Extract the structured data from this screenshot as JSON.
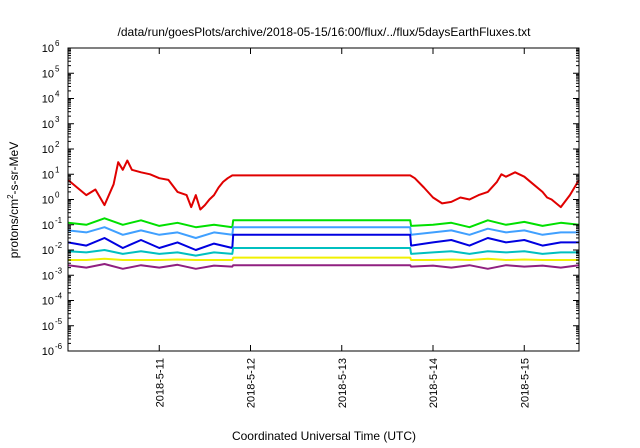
{
  "chart_data": {
    "type": "line",
    "title": "/data/run/goesPlots/archive/2018-05-15/16:00/flux/../flux/5daysEarthFluxes.txt",
    "xlabel": "Coordinated Universal Time (UTC)",
    "ylabel": {
      "base": "protons/cm",
      "sup": "2",
      "rest": "-s-sr-MeV"
    },
    "yscale": "log",
    "ylim": [
      1e-06,
      1000000.0
    ],
    "y_ticks": [
      {
        "value": -6,
        "base": "10",
        "exp": "-6"
      },
      {
        "value": -5,
        "base": "10",
        "exp": "-5"
      },
      {
        "value": -4,
        "base": "10",
        "exp": "-4"
      },
      {
        "value": -3,
        "base": "10",
        "exp": "-3"
      },
      {
        "value": -2,
        "base": "10",
        "exp": "-2"
      },
      {
        "value": -1,
        "base": "10",
        "exp": "-1"
      },
      {
        "value": 0,
        "base": "10",
        "exp": "0"
      },
      {
        "value": 1,
        "base": "10",
        "exp": "1"
      },
      {
        "value": 2,
        "base": "10",
        "exp": "2"
      },
      {
        "value": 3,
        "base": "10",
        "exp": "3"
      },
      {
        "value": 4,
        "base": "10",
        "exp": "4"
      },
      {
        "value": 5,
        "base": "10",
        "exp": "5"
      },
      {
        "value": 6,
        "base": "10",
        "exp": "6"
      }
    ],
    "x_ticks": [
      "2018-5-11",
      "2018-5-12",
      "2018-5-13",
      "2018-5-14",
      "2018-5-15"
    ],
    "xlim": [
      0,
      5.6
    ],
    "x_tick_positions": [
      1,
      2,
      3,
      4,
      5
    ],
    "grid": false,
    "legend": "none",
    "series": [
      {
        "color": "#e00000",
        "x": [
          0.0,
          0.1,
          0.2,
          0.3,
          0.4,
          0.5,
          0.55,
          0.6,
          0.65,
          0.7,
          0.8,
          0.9,
          1.0,
          1.1,
          1.2,
          1.3,
          1.35,
          1.4,
          1.45,
          1.5,
          1.55,
          1.6,
          1.65,
          1.7,
          1.75,
          1.8,
          3.75,
          3.8,
          3.9,
          4.0,
          4.1,
          4.2,
          4.3,
          4.4,
          4.5,
          4.6,
          4.7,
          4.75,
          4.8,
          4.9,
          5.0,
          5.1,
          5.2,
          5.25,
          5.3,
          5.4,
          5.5,
          5.6
        ],
        "values": [
          6,
          3,
          1.5,
          2.5,
          0.6,
          4,
          30,
          15,
          35,
          15,
          12,
          10,
          7,
          6,
          2,
          1.5,
          0.5,
          1.5,
          0.4,
          0.6,
          1,
          1.5,
          3,
          5,
          7,
          9,
          9,
          7,
          3,
          1.2,
          0.7,
          0.8,
          1.2,
          1,
          1.5,
          2,
          5,
          10,
          8,
          12,
          8,
          4,
          2,
          1.2,
          1,
          0.5,
          1.5,
          6
        ]
      },
      {
        "color": "#00e000",
        "x": [
          0.0,
          0.2,
          0.4,
          0.6,
          0.8,
          1.0,
          1.2,
          1.4,
          1.6,
          1.8,
          1.81,
          3.75,
          3.76,
          4.0,
          4.2,
          4.4,
          4.6,
          4.8,
          5.0,
          5.2,
          5.4,
          5.6
        ],
        "values": [
          0.12,
          0.1,
          0.18,
          0.1,
          0.15,
          0.09,
          0.12,
          0.08,
          0.1,
          0.08,
          0.15,
          0.15,
          0.09,
          0.1,
          0.12,
          0.08,
          0.15,
          0.1,
          0.13,
          0.09,
          0.12,
          0.1
        ]
      },
      {
        "color": "#40a0ff",
        "x": [
          0.0,
          0.2,
          0.4,
          0.6,
          0.8,
          1.0,
          1.2,
          1.4,
          1.6,
          1.8,
          1.81,
          3.75,
          3.76,
          4.0,
          4.2,
          4.4,
          4.6,
          4.8,
          5.0,
          5.2,
          5.4,
          5.6
        ],
        "values": [
          0.06,
          0.05,
          0.08,
          0.04,
          0.06,
          0.04,
          0.05,
          0.03,
          0.05,
          0.04,
          0.08,
          0.08,
          0.04,
          0.05,
          0.06,
          0.04,
          0.07,
          0.05,
          0.06,
          0.04,
          0.05,
          0.05
        ]
      },
      {
        "color": "#0000e0",
        "x": [
          0.0,
          0.2,
          0.4,
          0.6,
          0.8,
          1.0,
          1.2,
          1.4,
          1.6,
          1.8,
          1.81,
          3.75,
          3.76,
          4.0,
          4.2,
          4.4,
          4.6,
          4.8,
          5.0,
          5.2,
          5.4,
          5.6
        ],
        "values": [
          0.02,
          0.015,
          0.03,
          0.012,
          0.025,
          0.012,
          0.02,
          0.01,
          0.018,
          0.012,
          0.04,
          0.04,
          0.015,
          0.02,
          0.025,
          0.015,
          0.03,
          0.02,
          0.025,
          0.015,
          0.02,
          0.02
        ]
      },
      {
        "color": "#00c0c0",
        "x": [
          0.0,
          0.2,
          0.4,
          0.6,
          0.8,
          1.0,
          1.2,
          1.4,
          1.6,
          1.8,
          1.81,
          3.75,
          3.76,
          4.0,
          4.2,
          4.4,
          4.6,
          4.8,
          5.0,
          5.2,
          5.4,
          5.6
        ],
        "values": [
          0.009,
          0.008,
          0.01,
          0.007,
          0.009,
          0.007,
          0.008,
          0.006,
          0.008,
          0.007,
          0.012,
          0.012,
          0.007,
          0.008,
          0.009,
          0.007,
          0.009,
          0.008,
          0.009,
          0.007,
          0.008,
          0.008
        ]
      },
      {
        "color": "#f0f000",
        "x": [
          0.0,
          0.2,
          0.4,
          0.6,
          0.8,
          1.0,
          1.2,
          1.4,
          1.6,
          1.8,
          1.81,
          3.75,
          3.76,
          4.0,
          4.2,
          4.4,
          4.6,
          4.8,
          5.0,
          5.2,
          5.4,
          5.6
        ],
        "values": [
          0.004,
          0.004,
          0.0045,
          0.004,
          0.004,
          0.004,
          0.0042,
          0.004,
          0.004,
          0.004,
          0.005,
          0.005,
          0.004,
          0.004,
          0.0042,
          0.004,
          0.0045,
          0.004,
          0.0042,
          0.004,
          0.004,
          0.004
        ]
      },
      {
        "color": "#902080",
        "x": [
          0.0,
          0.2,
          0.4,
          0.6,
          0.8,
          1.0,
          1.2,
          1.4,
          1.6,
          1.8,
          1.81,
          3.75,
          3.76,
          4.0,
          4.2,
          4.4,
          4.6,
          4.8,
          5.0,
          5.2,
          5.4,
          5.6
        ],
        "values": [
          0.0025,
          0.002,
          0.0028,
          0.0018,
          0.0025,
          0.002,
          0.0026,
          0.0018,
          0.0024,
          0.0022,
          0.0025,
          0.0025,
          0.0022,
          0.0024,
          0.002,
          0.0025,
          0.0018,
          0.0025,
          0.0022,
          0.0024,
          0.002,
          0.0025
        ]
      }
    ]
  }
}
